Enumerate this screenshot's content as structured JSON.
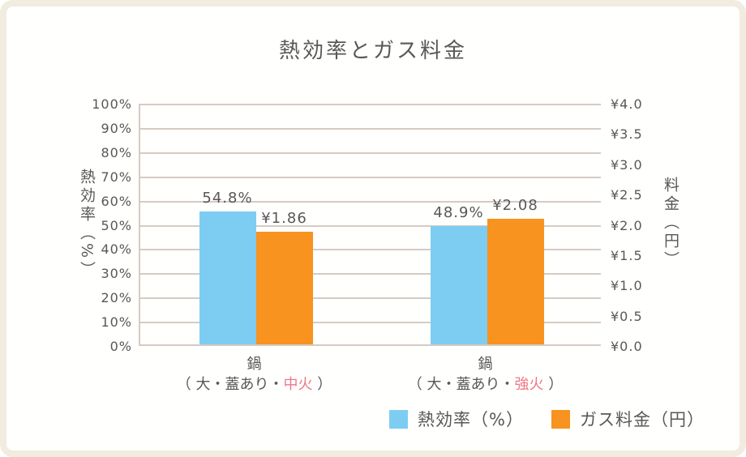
{
  "title": "熱効率とガス料金",
  "colors": {
    "blue": "#7dcdf2",
    "orange": "#f7931e",
    "grid": "#d5cbc2",
    "text": "#595757",
    "accent_red": "#f0788a",
    "frame_border": "#f1ecdf"
  },
  "left_axis": {
    "title": "熱効率（%）",
    "ticks": [
      "100%",
      "90%",
      "80%",
      "70%",
      "60%",
      "50%",
      "40%",
      "30%",
      "20%",
      "10%",
      "0%"
    ]
  },
  "right_axis": {
    "title": "料金（円）",
    "ticks": [
      "¥4.0",
      "¥3.5",
      "¥3.0",
      "¥2.5",
      "¥2.0",
      "¥1.5",
      "¥1.0",
      "¥0.5",
      "¥0.0"
    ]
  },
  "chart_data": {
    "type": "bar",
    "title": "熱効率とガス料金",
    "categories": [
      {
        "line1": "鍋",
        "line2_prefix": "（ 大・蓋あり・",
        "line2_accent": "中火",
        "line2_suffix": " ）"
      },
      {
        "line1": "鍋",
        "line2_prefix": "（ 大・蓋あり・",
        "line2_accent": "強火",
        "line2_suffix": " ）"
      }
    ],
    "series": [
      {
        "name": "熱効率（%）",
        "axis": "left",
        "color_key": "blue",
        "values": [
          54.8,
          48.9
        ],
        "labels": [
          "54.8%",
          "48.9%"
        ]
      },
      {
        "name": "ガス料金（円）",
        "axis": "right",
        "color_key": "orange",
        "values": [
          1.86,
          2.08
        ],
        "labels": [
          "¥1.86",
          "¥2.08"
        ]
      }
    ],
    "left_ylabel": "熱効率（%）",
    "right_ylabel": "料金（円）",
    "left_ylim": [
      0,
      100
    ],
    "right_ylim": [
      0,
      4.0
    ],
    "grid": true,
    "legend_position": "bottom-right"
  },
  "legend": [
    {
      "label": "熱効率（%）",
      "color_key": "blue"
    },
    {
      "label": "ガス料金（円）",
      "color_key": "orange"
    }
  ]
}
